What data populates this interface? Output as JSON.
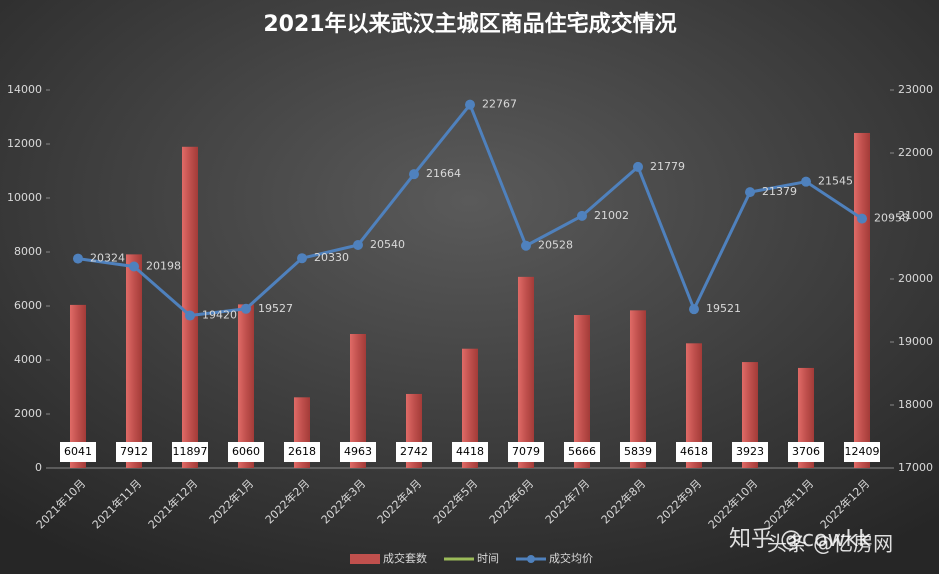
{
  "chart_data": {
    "type": "bar_line",
    "title": "2021年以来武汉主城区商品住宅成交情况",
    "categories": [
      "2021年10月",
      "2021年11月",
      "2021年12月",
      "2022年1月",
      "2022年2月",
      "2022年3月",
      "2022年4月",
      "2022年5月",
      "2022年6月",
      "2022年7月",
      "2022年8月",
      "2022年9月",
      "2022年10月",
      "2022年11月",
      "2022年12月"
    ],
    "series": [
      {
        "name": "成交套数",
        "color": "#c0504d",
        "values": [
          6041,
          7912,
          11897,
          6060,
          2618,
          4963,
          2742,
          4418,
          7079,
          5666,
          5839,
          4618,
          3923,
          3706,
          12409
        ]
      },
      {
        "name": "时间",
        "color": "#9bbb59",
        "values": [
          null,
          null,
          null,
          null,
          null,
          null,
          null,
          null,
          null,
          null,
          null,
          null,
          null,
          null,
          null
        ]
      },
      {
        "name": "成交均价",
        "color": "#4f81bd",
        "axis": "y2",
        "values": [
          20324,
          20198,
          19420,
          19527,
          20330,
          20540,
          21664,
          22767,
          20528,
          21002,
          21779,
          19521,
          21379,
          21545,
          20958
        ]
      }
    ],
    "ylim": [
      0,
      14000
    ],
    "yticks": [
      0,
      2000,
      4000,
      6000,
      8000,
      10000,
      12000,
      14000
    ],
    "y2lim": [
      17000,
      23000
    ],
    "y2ticks": [
      17000,
      18000,
      19000,
      20000,
      21000,
      22000,
      23000
    ],
    "watermark": [
      "知乎 @cowkk",
      "头条 @亿房网"
    ]
  }
}
